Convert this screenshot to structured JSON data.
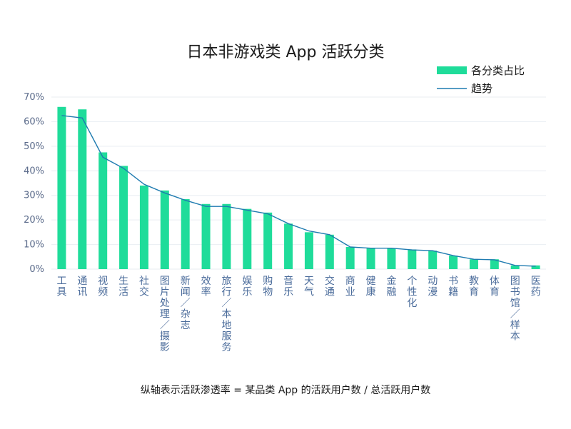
{
  "chart_data": {
    "type": "bar",
    "title": "日本非游戏类 App 活跃分类",
    "legend": [
      {
        "name": "各分类占比",
        "kind": "bar",
        "color": "#1fdc9a"
      },
      {
        "name": "趋势",
        "kind": "line",
        "color": "#1f7bb0"
      }
    ],
    "legend_position": "top-right",
    "y_ticks": [
      "0%",
      "10%",
      "20%",
      "30%",
      "40%",
      "50%",
      "60%",
      "70%"
    ],
    "ylim": [
      0,
      70
    ],
    "grid": true,
    "categories": [
      [
        "工",
        "具"
      ],
      [
        "通",
        "讯"
      ],
      [
        "视",
        "频"
      ],
      [
        "生",
        "活"
      ],
      [
        "社",
        "交"
      ],
      [
        "图",
        "片",
        "处",
        "理",
        "／",
        "摄",
        "影"
      ],
      [
        "新",
        "闻",
        "／",
        "杂",
        "志"
      ],
      [
        "效",
        "率"
      ],
      [
        "旅",
        "行",
        "／",
        "本",
        "地",
        "服",
        "务"
      ],
      [
        "娱",
        "乐"
      ],
      [
        "购",
        "物"
      ],
      [
        "音",
        "乐"
      ],
      [
        "天",
        "气"
      ],
      [
        "交",
        "通"
      ],
      [
        "商",
        "业"
      ],
      [
        "健",
        "康"
      ],
      [
        "金",
        "融"
      ],
      [
        "个",
        "性",
        "化"
      ],
      [
        "动",
        "漫"
      ],
      [
        "书",
        "籍"
      ],
      [
        "教",
        "育"
      ],
      [
        "体",
        "育"
      ],
      [
        "图",
        "书",
        "馆",
        "／",
        "样",
        "本"
      ],
      [
        "医",
        "药"
      ]
    ],
    "series": [
      {
        "name": "各分类占比",
        "values": [
          66,
          65,
          47.5,
          42,
          34,
          32,
          28.5,
          26.5,
          26.5,
          24.5,
          23,
          18.5,
          15,
          14,
          9,
          8.5,
          8.5,
          8,
          7.5,
          5.5,
          4,
          4,
          1.5,
          1.5
        ]
      },
      {
        "name": "趋势",
        "values": [
          62.5,
          61.5,
          45.5,
          41,
          34.5,
          31,
          28,
          25.5,
          25.5,
          24,
          22.5,
          18.5,
          15.5,
          14,
          9,
          8.5,
          8.5,
          7.8,
          7.5,
          5.5,
          4,
          3.8,
          1.5,
          1.2
        ]
      }
    ],
    "footnote": "纵轴表示活跃渗透率 = 某品类 App 的活跃用户数 / 总活跃用户数"
  }
}
